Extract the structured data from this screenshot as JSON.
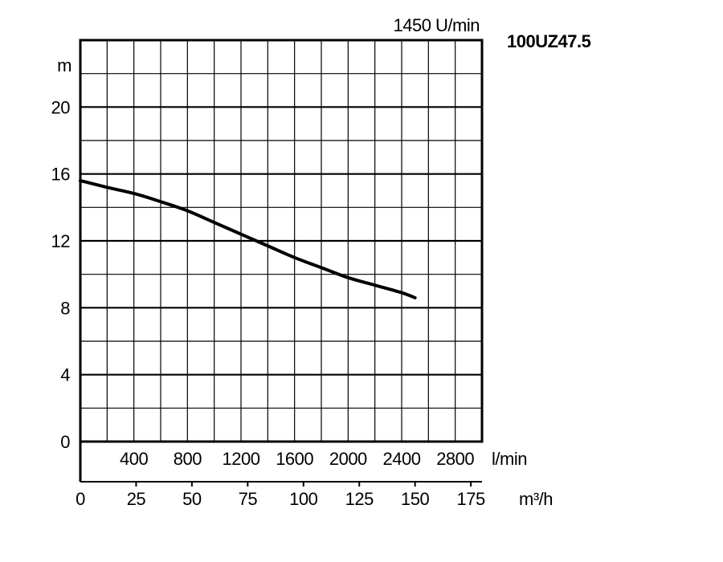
{
  "chart_data": {
    "type": "line",
    "speed_label": "1450 U/min",
    "model_label": "100UZ47.5",
    "y_unit": "m",
    "y_ticks": [
      "0",
      "4",
      "8",
      "12",
      "16",
      "20"
    ],
    "ylim": [
      0,
      24
    ],
    "flow_lmin_ticks": [
      "400",
      "800",
      "1200",
      "1600",
      "2000",
      "2400",
      "2800"
    ],
    "flow_lmin_unit": "l/min",
    "flow_m3h_ticks": [
      "0",
      "25",
      "50",
      "75",
      "100",
      "125",
      "150",
      "175"
    ],
    "flow_m3h_unit": "m³/h",
    "xlim_m3h": [
      0,
      180
    ],
    "grid": true,
    "series": [
      {
        "x_m3h": [
          0,
          12,
          25,
          37,
          48,
          60,
          72,
          84,
          96,
          108,
          120,
          132,
          144,
          150
        ],
        "y_m": [
          15.6,
          15.2,
          14.8,
          14.3,
          13.8,
          13.1,
          12.4,
          11.7,
          11.0,
          10.4,
          9.8,
          9.35,
          8.9,
          8.6
        ]
      }
    ],
    "line_color": "#000000"
  }
}
